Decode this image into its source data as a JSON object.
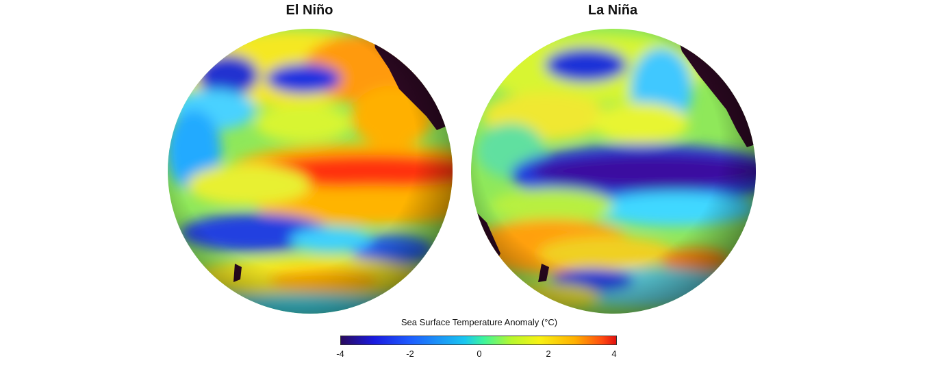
{
  "titles": {
    "left": "El Niño",
    "right": "La Niña"
  },
  "legend": {
    "title": "Sea Surface Temperature Anomaly (°C)",
    "ticks": [
      "-4",
      "-2",
      "0",
      "2",
      "4"
    ],
    "colors": [
      "#2a0a5e",
      "#1a1adf",
      "#1e5cff",
      "#19c6f0",
      "#3ef59a",
      "#b7f72c",
      "#f7f214",
      "#ffb000",
      "#ff4a10",
      "#e01010"
    ]
  }
}
